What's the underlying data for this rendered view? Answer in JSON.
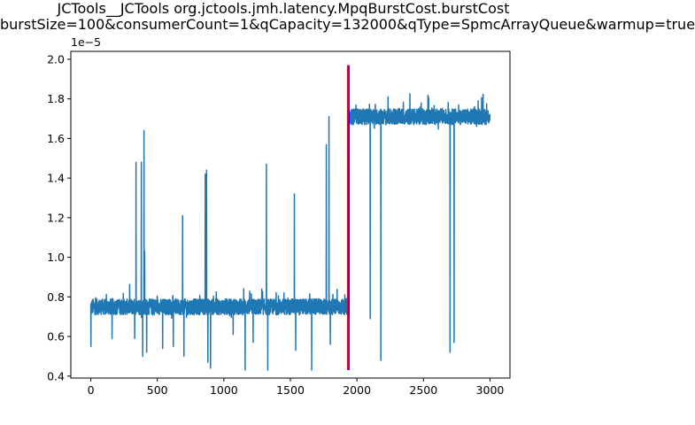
{
  "chart_data": {
    "type": "line",
    "title_line1": "JCTools__JCTools org.jctools.jmh.latency.MpqBurstCost.burstCost",
    "title_line2": "burstSize=100&consumerCount=1&qCapacity=132000&qType=SpmcArrayQueue&warmup=true",
    "xlabel": "",
    "ylabel": "",
    "y_offset_text": "1e−5",
    "xlim": [
      -150,
      3150
    ],
    "ylim": [
      3.9e-06,
      2.04e-05
    ],
    "x_ticks": [
      0,
      500,
      1000,
      1500,
      2000,
      2500,
      3000
    ],
    "x_tick_labels": [
      "0",
      "500",
      "1000",
      "1500",
      "2000",
      "2500",
      "3000"
    ],
    "y_ticks": [
      4e-06,
      6e-06,
      8e-06,
      1e-05,
      1.2e-05,
      1.4e-05,
      1.6e-05,
      1.8e-05,
      2e-05
    ],
    "y_tick_labels": [
      "0.4",
      "0.6",
      "0.8",
      "1.0",
      "1.2",
      "1.4",
      "1.6",
      "1.8",
      "2.0"
    ],
    "grid": false,
    "series_color": "#1f77b4",
    "n_points": 3000,
    "segments": [
      {
        "x_start": 0,
        "x_end": 1940,
        "baseline": 7.5e-06
      },
      {
        "x_start": 1940,
        "x_end": 3000,
        "baseline": 1.71e-05
      }
    ],
    "spikes": [
      {
        "x": 1,
        "y": 5.5e-06
      },
      {
        "x": 160,
        "y": 5.9e-06
      },
      {
        "x": 330,
        "y": 5.9e-06
      },
      {
        "x": 340,
        "y": 1.48e-05
      },
      {
        "x": 380,
        "y": 1.48e-05
      },
      {
        "x": 390,
        "y": 5e-06
      },
      {
        "x": 400,
        "y": 1.64e-05
      },
      {
        "x": 405,
        "y": 1.03e-05
      },
      {
        "x": 420,
        "y": 5.2e-06
      },
      {
        "x": 540,
        "y": 5.4e-06
      },
      {
        "x": 620,
        "y": 5.5e-06
      },
      {
        "x": 690,
        "y": 1.21e-05
      },
      {
        "x": 700,
        "y": 5e-06
      },
      {
        "x": 860,
        "y": 1.42e-05
      },
      {
        "x": 870,
        "y": 1.44e-05
      },
      {
        "x": 880,
        "y": 4.7e-06
      },
      {
        "x": 900,
        "y": 4.4e-06
      },
      {
        "x": 1070,
        "y": 6.1e-06
      },
      {
        "x": 1160,
        "y": 4.3e-06
      },
      {
        "x": 1220,
        "y": 5.7e-06
      },
      {
        "x": 1320,
        "y": 1.47e-05
      },
      {
        "x": 1330,
        "y": 4.3e-06
      },
      {
        "x": 1530,
        "y": 1.32e-05
      },
      {
        "x": 1540,
        "y": 5.3e-06
      },
      {
        "x": 1660,
        "y": 4.3e-06
      },
      {
        "x": 1770,
        "y": 1.57e-05
      },
      {
        "x": 1790,
        "y": 1.71e-05
      },
      {
        "x": 1800,
        "y": 5.6e-06
      },
      {
        "x": 2100,
        "y": 6.9e-06
      },
      {
        "x": 2180,
        "y": 4.8e-06
      },
      {
        "x": 2700,
        "y": 5.2e-06
      },
      {
        "x": 2730,
        "y": 5.7e-06
      }
    ],
    "vertical_lines": [
      {
        "x": 1930,
        "color": "#ff0000",
        "y_range": [
          4.3e-06,
          1.97e-05
        ]
      },
      {
        "x": 1940,
        "color": "#0000ff",
        "y_range": [
          4.3e-06,
          1.97e-05
        ]
      }
    ]
  }
}
